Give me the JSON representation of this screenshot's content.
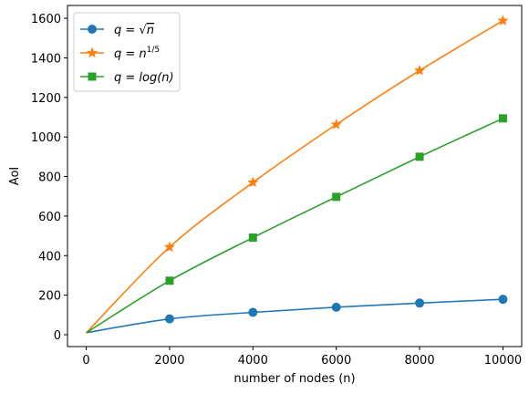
{
  "chart_data": {
    "type": "line",
    "title": "",
    "xlabel": "number of nodes (n)",
    "ylabel": "AoI",
    "xlim": [
      -450,
      10450
    ],
    "ylim": [
      -60,
      1665
    ],
    "grid": false,
    "legend_position": "top-left",
    "x_ticks": [
      0,
      2000,
      4000,
      6000,
      8000,
      10000
    ],
    "y_ticks": [
      0,
      200,
      400,
      600,
      800,
      1000,
      1200,
      1400,
      1600
    ],
    "marker_x": [
      2,
      2000,
      4000,
      6000,
      8000,
      10000
    ],
    "series": [
      {
        "name": "q = √n",
        "legend_base": "q = √",
        "legend_sup": "",
        "legend_tail": "n",
        "color": "#1f77b4",
        "marker": "circle",
        "values": [
          10,
          80,
          113,
          139,
          160,
          179
        ]
      },
      {
        "name": "q = n^{1/5}",
        "legend_base": "q = n",
        "legend_sup": "1/5",
        "legend_tail": "",
        "color": "#ff7f0e",
        "marker": "star",
        "values": [
          10,
          443,
          770,
          1063,
          1336,
          1588
        ]
      },
      {
        "name": "q = log(n)",
        "legend_base": "q = log(n)",
        "legend_sup": "",
        "legend_tail": "",
        "color": "#2ca02c",
        "marker": "square",
        "values": [
          10,
          273,
          491,
          697,
          900,
          1094
        ]
      }
    ]
  }
}
